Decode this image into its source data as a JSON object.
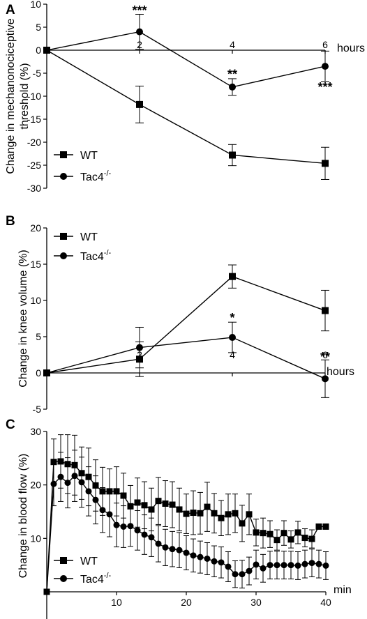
{
  "chart_data": [
    {
      "panel": "A",
      "type": "line",
      "ylabel": "Change in mechanonociceptive threshold (%)",
      "ylabel_lines": [
        "Change in mechanonociceptive",
        "threshold (%)"
      ],
      "xunit": "hours",
      "x": [
        0,
        2,
        4,
        6
      ],
      "xticks": [
        2,
        4,
        6
      ],
      "xlim": [
        0,
        6
      ],
      "ylim": [
        -30,
        10
      ],
      "yticks": [
        10,
        5,
        0,
        -5,
        -10,
        -15,
        -20,
        -25,
        -30
      ],
      "legend_position": "bottom-left",
      "series": [
        {
          "name": "WT",
          "marker": "square",
          "values": [
            0,
            -11.8,
            -22.8,
            -24.6
          ],
          "errors": [
            0,
            4.0,
            2.3,
            3.5
          ]
        },
        {
          "name": "Tac4-/-",
          "name_base": "Tac4",
          "name_sup": "-/-",
          "marker": "circle",
          "values": [
            0,
            4.0,
            -8.0,
            -3.5
          ],
          "errors": [
            0,
            3.8,
            1.8,
            3.3
          ]
        }
      ],
      "annotations": [
        {
          "text": "***",
          "x": 2,
          "y": 8.6
        },
        {
          "text": "**",
          "x": 4,
          "y": -5.2
        },
        {
          "text": "***",
          "x": 6,
          "y": -8.0
        }
      ]
    },
    {
      "panel": "B",
      "type": "line",
      "ylabel": "Change in knee volume (%)",
      "xunit": "hours",
      "x": [
        0,
        2,
        4,
        6
      ],
      "xticks": [
        2,
        4,
        6
      ],
      "xlim": [
        0,
        6
      ],
      "ylim": [
        -5,
        20
      ],
      "yticks": [
        20,
        15,
        10,
        5,
        0,
        -5
      ],
      "legend_position": "top-left",
      "series": [
        {
          "name": "WT",
          "marker": "square",
          "values": [
            0,
            1.9,
            13.3,
            8.6
          ],
          "errors": [
            0,
            2.4,
            1.6,
            2.8
          ]
        },
        {
          "name": "Tac4-/-",
          "name_base": "Tac4",
          "name_sup": "-/-",
          "marker": "circle",
          "values": [
            0,
            3.5,
            4.9,
            -0.8
          ],
          "errors": [
            0,
            2.8,
            2.1,
            2.6
          ]
        }
      ],
      "annotations": [
        {
          "text": "*",
          "x": 4,
          "y": 7.6
        },
        {
          "text": "**",
          "x": 6,
          "y": 2.2
        }
      ]
    },
    {
      "panel": "C",
      "type": "line",
      "ylabel": "Change in blood flow (%)",
      "xunit": "min",
      "xticks": [
        10,
        20,
        30,
        40
      ],
      "xlim": [
        0,
        40
      ],
      "ylim": [
        0,
        30
      ],
      "yticks": [
        30,
        20,
        10
      ],
      "legend_position": "bottom-left",
      "series": [
        {
          "name": "WT",
          "marker": "square",
          "x": [
            0,
            1,
            2,
            3,
            4,
            5,
            6,
            7,
            8,
            9,
            10,
            11,
            12,
            13,
            14,
            15,
            16,
            17,
            18,
            19,
            20,
            21,
            22,
            23,
            24,
            25,
            26,
            27,
            28,
            29,
            30,
            31,
            32,
            33,
            34,
            35,
            36,
            37,
            38,
            39,
            40
          ],
          "values": [
            0,
            24.3,
            24.4,
            23.9,
            23.7,
            22.2,
            21.5,
            19.9,
            18.8,
            18.8,
            18.8,
            18.0,
            16.0,
            16.7,
            16.2,
            15.4,
            17.0,
            16.5,
            16.3,
            15.4,
            14.6,
            14.8,
            14.7,
            15.9,
            14.7,
            13.8,
            14.5,
            14.7,
            12.8,
            14.5,
            11.1,
            11.0,
            10.8,
            9.7,
            11.0,
            9.8,
            11.1,
            10.1,
            9.9,
            12.2,
            12.2
          ],
          "errors": [
            0,
            4.3,
            5.0,
            5.5,
            5.6,
            4.9,
            5.4,
            4.8,
            4.5,
            4.2,
            4.6,
            4.2,
            3.9,
            4.6,
            4.4,
            4.0,
            4.4,
            4.3,
            4.3,
            4.0,
            3.7,
            4.1,
            3.9,
            4.6,
            3.7,
            3.3,
            3.8,
            3.6,
            3.4,
            3.8,
            2.5,
            2.8,
            2.5,
            1.9,
            2.3,
            1.6,
            2.1,
            1.7,
            1.7,
            0,
            0
          ]
        },
        {
          "name": "Tac4-/-",
          "name_base": "Tac4",
          "name_sup": "-/-",
          "marker": "circle",
          "x": [
            0,
            1,
            2,
            3,
            4,
            5,
            6,
            7,
            8,
            9,
            10,
            11,
            12,
            13,
            14,
            15,
            16,
            17,
            18,
            19,
            20,
            21,
            22,
            23,
            24,
            25,
            26,
            27,
            28,
            29,
            30,
            31,
            32,
            33,
            34,
            35,
            36,
            37,
            38,
            39,
            40
          ],
          "values": [
            0,
            20.2,
            21.5,
            20.4,
            21.7,
            20.5,
            18.8,
            17.2,
            15.3,
            14.5,
            12.5,
            12.2,
            12.3,
            11.5,
            10.7,
            10.2,
            9.0,
            8.3,
            8.0,
            7.8,
            7.3,
            6.8,
            6.5,
            6.2,
            5.7,
            5.5,
            4.7,
            3.3,
            3.3,
            3.9,
            5.1,
            4.4,
            5.0,
            5.0,
            5.0,
            5.0,
            4.9,
            5.2,
            5.4,
            5.2,
            4.9
          ],
          "errors": [
            0,
            4.1,
            4.6,
            4.7,
            4.8,
            4.7,
            4.6,
            4.5,
            4.2,
            4.2,
            4.1,
            3.9,
            3.8,
            3.7,
            3.7,
            3.6,
            3.4,
            3.4,
            3.3,
            3.3,
            3.2,
            3.1,
            3.0,
            3.0,
            2.9,
            2.9,
            2.8,
            2.5,
            2.6,
            2.6,
            2.7,
            2.6,
            2.6,
            2.6,
            2.6,
            2.6,
            2.6,
            2.6,
            2.6,
            2.6,
            2.6
          ]
        }
      ],
      "annotations": []
    }
  ]
}
